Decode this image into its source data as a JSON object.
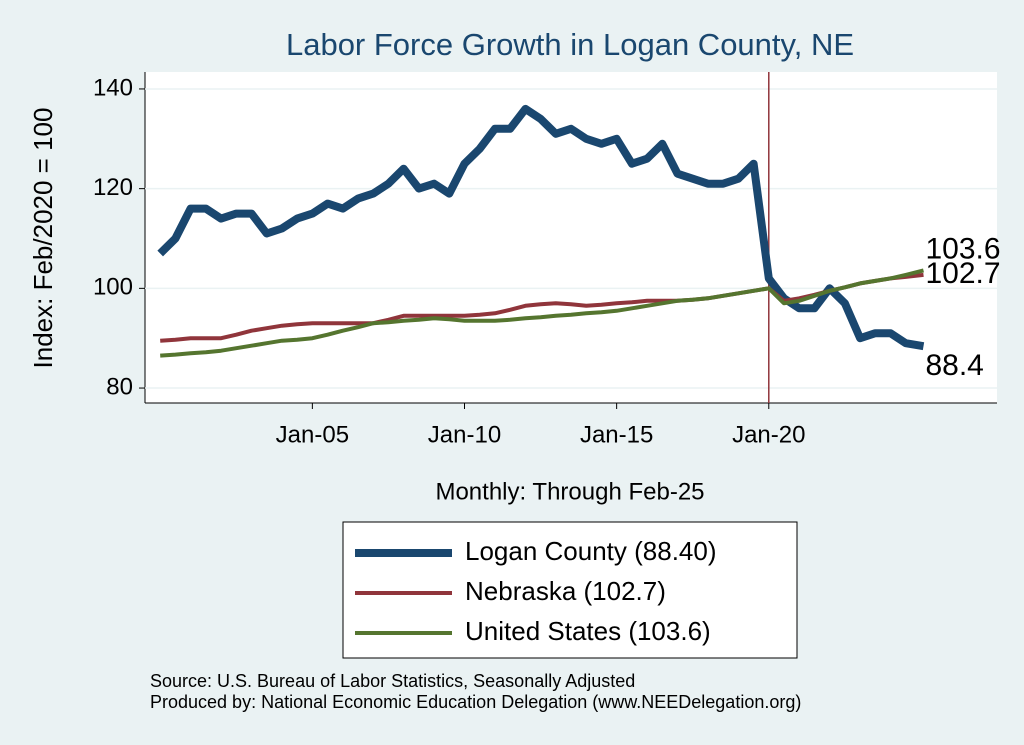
{
  "chart_data": {
    "type": "line",
    "title": "Labor Force Growth in Logan  County, NE",
    "x_label": "Monthly: Through Feb-25",
    "y_label": "Index: Feb/2020 = 100",
    "notes": [
      "Source: U.S. Bureau of Labor Statistics, Seasonally Adjusted",
      "Produced by: National Economic Education Delegation (www.NEEDelegation.org)"
    ],
    "x": [
      "2000-01",
      "2000-07",
      "2001-01",
      "2001-07",
      "2002-01",
      "2002-07",
      "2003-01",
      "2003-07",
      "2004-01",
      "2004-07",
      "2005-01",
      "2005-07",
      "2006-01",
      "2006-07",
      "2007-01",
      "2007-07",
      "2008-01",
      "2008-07",
      "2009-01",
      "2009-07",
      "2010-01",
      "2010-07",
      "2011-01",
      "2011-07",
      "2012-01",
      "2012-07",
      "2013-01",
      "2013-07",
      "2014-01",
      "2014-07",
      "2015-01",
      "2015-07",
      "2016-01",
      "2016-07",
      "2017-01",
      "2017-07",
      "2018-01",
      "2018-07",
      "2019-01",
      "2019-07",
      "2020-01",
      "2020-07",
      "2021-01",
      "2021-07",
      "2022-01",
      "2022-07",
      "2023-01",
      "2023-07",
      "2024-01",
      "2024-07",
      "2025-02"
    ],
    "series": [
      {
        "name": "Logan  County (88.40)",
        "color": "#1a476f",
        "line_width": 8,
        "values": [
          107,
          110,
          116,
          116,
          114,
          115,
          115,
          111,
          112,
          114,
          115,
          117,
          116,
          118,
          119,
          121,
          124,
          120,
          121,
          119,
          125,
          128,
          132,
          132,
          136,
          134,
          131,
          132,
          130,
          129,
          130,
          125,
          126,
          129,
          123,
          122,
          121,
          121,
          122,
          125,
          102,
          98,
          96,
          96,
          100,
          97,
          90,
          91,
          91,
          89,
          88.4
        ]
      },
      {
        "name": "Nebraska (102.7)",
        "color": "#90353b",
        "line_width": 4,
        "values": [
          89.5,
          89.7,
          90,
          90,
          90,
          90.7,
          91.5,
          92,
          92.5,
          92.8,
          93,
          93,
          93,
          93,
          93,
          93.7,
          94.5,
          94.5,
          94.5,
          94.5,
          94.5,
          94.7,
          95,
          95.7,
          96.5,
          96.8,
          97,
          96.8,
          96.5,
          96.7,
          97,
          97.2,
          97.5,
          97.5,
          97.5,
          97.7,
          98,
          98.5,
          99,
          99.5,
          100,
          97.5,
          98,
          98.7,
          99.5,
          100.2,
          101,
          101.5,
          102,
          102.3,
          102.7
        ]
      },
      {
        "name": "United States (103.6)",
        "color": "#55752f",
        "line_width": 4,
        "values": [
          86.5,
          86.7,
          87,
          87.2,
          87.5,
          88,
          88.5,
          89,
          89.5,
          89.7,
          90,
          90.7,
          91.5,
          92.2,
          93,
          93.2,
          93.5,
          93.7,
          94,
          93.8,
          93.5,
          93.5,
          93.5,
          93.7,
          94,
          94.2,
          94.5,
          94.7,
          95,
          95.2,
          95.5,
          96,
          96.5,
          97,
          97.5,
          97.7,
          98,
          98.5,
          99,
          99.5,
          100,
          97,
          97.5,
          98.5,
          99.5,
          100.2,
          101,
          101.5,
          102,
          102.7,
          103.6
        ]
      }
    ],
    "xlim": [
      "1999-07",
      "2027-07"
    ],
    "xticks": [
      {
        "value": "2005-01",
        "label": "Jan-05"
      },
      {
        "value": "2010-01",
        "label": "Jan-10"
      },
      {
        "value": "2015-01",
        "label": "Jan-15"
      },
      {
        "value": "2020-01",
        "label": "Jan-20"
      }
    ],
    "ylim": [
      77,
      143.4
    ],
    "yticks": [
      80,
      100,
      120,
      140
    ],
    "grid": true,
    "vline": {
      "value": "2020-01",
      "color": "#90353b"
    }
  }
}
